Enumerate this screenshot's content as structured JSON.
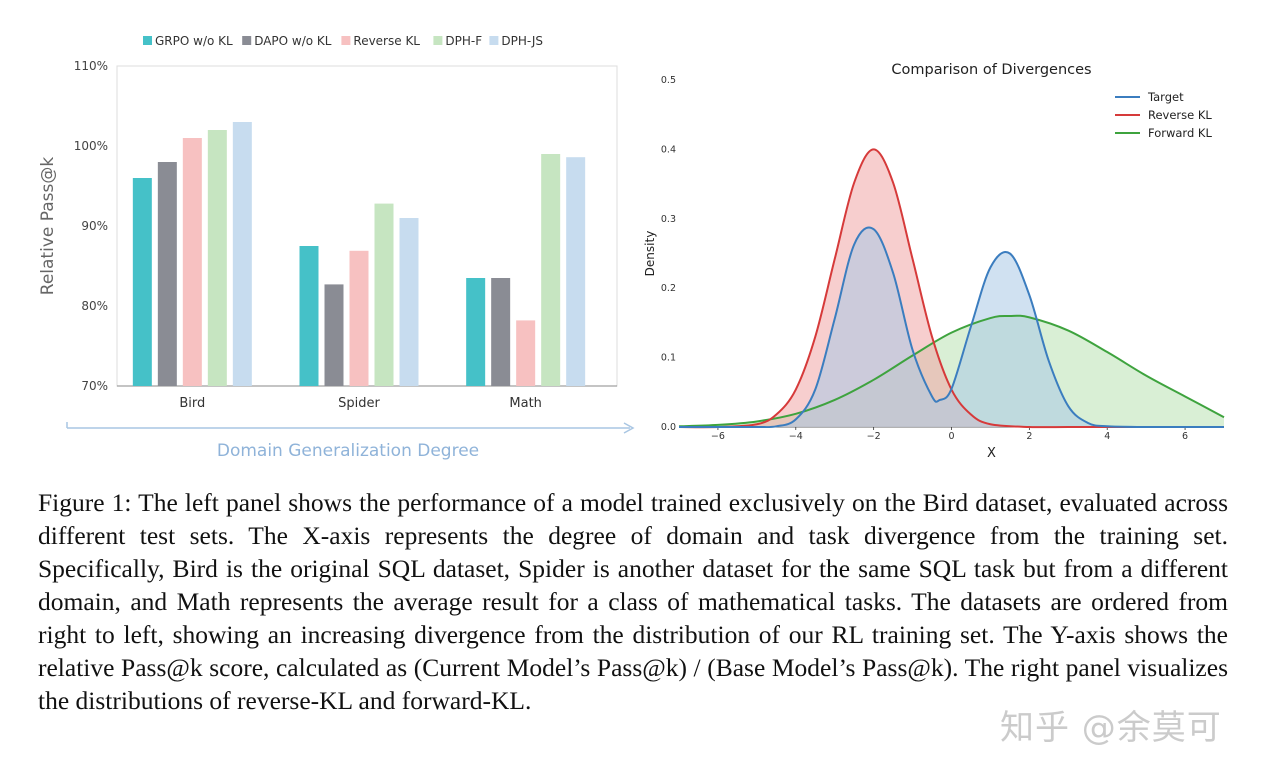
{
  "chart_data": [
    {
      "type": "bar",
      "categories": [
        "Bird",
        "Spider",
        "Math"
      ],
      "series": [
        {
          "name": "GRPO w/o KL",
          "color": "#45c1c8",
          "values": [
            96,
            87.5,
            83.5
          ]
        },
        {
          "name": "DAPO w/o KL",
          "color": "#8a8c94",
          "values": [
            98,
            82.7,
            83.5
          ]
        },
        {
          "name": "Reverse KL",
          "color": "#f7c1c1",
          "values": [
            101,
            86.9,
            78.2
          ]
        },
        {
          "name": "DPH-F",
          "color": "#c6e5c1",
          "values": [
            102,
            92.8,
            99
          ]
        },
        {
          "name": "DPH-JS",
          "color": "#c7dcef",
          "values": [
            103,
            91,
            98.6
          ]
        }
      ],
      "ylabel": "Relative Pass@k",
      "xlabel": "Domain Generalization Degree",
      "ylim": [
        70,
        110
      ],
      "yticks": [
        "70%",
        "80%",
        "90%",
        "100%",
        "110%"
      ],
      "legend": "top",
      "grid": false
    },
    {
      "type": "line",
      "title": "Comparison of Divergences",
      "xlabel": "X",
      "ylabel": "Density",
      "xlim": [
        -7,
        7
      ],
      "ylim": [
        0,
        0.5
      ],
      "xticks": [
        "−6",
        "−4",
        "−2",
        "0",
        "2",
        "4",
        "6"
      ],
      "yticks": [
        "0.0",
        "0.1",
        "0.2",
        "0.3",
        "0.4",
        "0.5"
      ],
      "legend": "top-right",
      "series": [
        {
          "name": "Target",
          "color": "#3b7dbf",
          "fill": "#a9c8e6",
          "x": [
            -7,
            -6,
            -5,
            -4.5,
            -4,
            -3.5,
            -3,
            -2.5,
            -2,
            -1.5,
            -1,
            -0.5,
            -0.3,
            0,
            0.5,
            1,
            1.5,
            2,
            2.5,
            3,
            3.5,
            4,
            5,
            6,
            7
          ],
          "y": [
            0,
            0,
            0,
            0.001,
            0.011,
            0.054,
            0.156,
            0.263,
            0.285,
            0.222,
            0.111,
            0.044,
            0.039,
            0.055,
            0.145,
            0.23,
            0.25,
            0.19,
            0.095,
            0.03,
            0.006,
            0.001,
            0,
            0,
            0
          ]
        },
        {
          "name": "Reverse KL",
          "color": "#d63a3a",
          "fill": "#f0a6a6",
          "x": [
            -7,
            -6,
            -5,
            -4.5,
            -4,
            -3.5,
            -3,
            -2.5,
            -2,
            -1.5,
            -1,
            -0.5,
            0,
            0.5,
            1,
            2,
            3,
            4,
            5,
            6,
            7
          ],
          "y": [
            0,
            0,
            0.004,
            0.018,
            0.054,
            0.13,
            0.242,
            0.352,
            0.4,
            0.352,
            0.242,
            0.13,
            0.054,
            0.018,
            0.004,
            0,
            0,
            0,
            0,
            0,
            0
          ]
        },
        {
          "name": "Forward KL",
          "color": "#3ea33e",
          "fill": "#b9e2b2",
          "x": [
            -7,
            -6,
            -5,
            -4,
            -3,
            -2,
            -1,
            0,
            1,
            1.5,
            2,
            3,
            4,
            5,
            6,
            7
          ],
          "y": [
            0.001,
            0.003,
            0.008,
            0.019,
            0.039,
            0.068,
            0.103,
            0.136,
            0.157,
            0.16,
            0.158,
            0.139,
            0.108,
            0.074,
            0.044,
            0.014
          ]
        }
      ]
    }
  ],
  "caption": "Figure 1: The left panel shows the performance of a model trained exclusively on the Bird dataset, evaluated across different test sets. The X-axis represents the degree of domain and task divergence from the training set. Specifically, Bird is the original SQL dataset, Spider is another dataset for the same SQL task but from a different domain, and Math represents the average result for a class of mathematical tasks. The datasets are ordered from right to left, showing an increasing divergence from the distribution of our RL training set. The Y-axis shows the relative Pass@k score, calculated as (Current Model’s Pass@k) / (Base Model’s Pass@k). The right panel visualizes the distributions of reverse-KL and forward-KL.",
  "watermark": "知乎 @余莫可"
}
